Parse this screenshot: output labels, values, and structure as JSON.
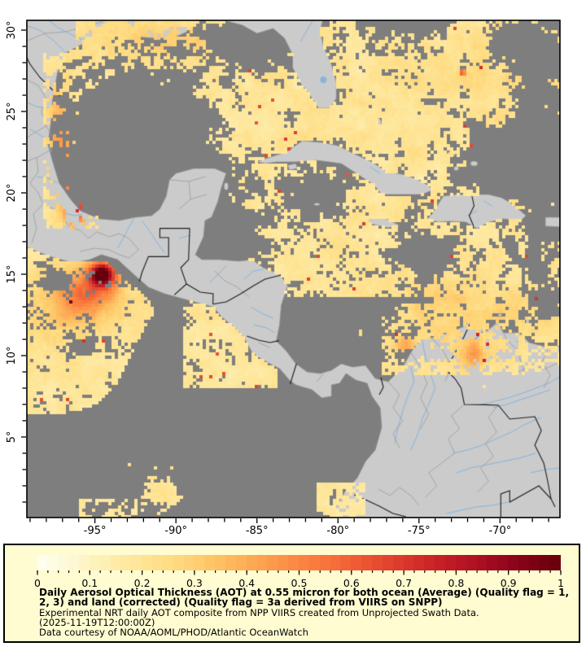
{
  "caption": {
    "line1": "Daily Aerosol Optical Thickness (AOT) at 0.55 micron for both ocean (Average) (Quality flag = 1,",
    "line2": "2, 3) and land (corrected) (Quality flag = 3a derived from VIIRS on SNPP)",
    "line3": "Experimental NRT daily AOT composite from NPP VIIRS created from Unprojected Swath Data.",
    "line4": "(2025-11-19T12:00:00Z)",
    "line5": "Data courtesy of NOAA/AOML/PHOD/Atlantic OceanWatch"
  },
  "axes": {
    "lon_tick_labels": [
      "-95°",
      "-90°",
      "-85°",
      "-80°",
      "-75°",
      "-70°"
    ],
    "lon_tick_values": [
      -95,
      -90,
      -85,
      -80,
      -75,
      -70
    ],
    "lat_tick_labels": [
      "30°",
      "25°",
      "20°",
      "15°",
      "10°",
      "5°"
    ],
    "lat_tick_values": [
      30,
      25,
      20,
      15,
      10,
      5
    ],
    "minor_tick_step_deg": 1
  },
  "colorbar": {
    "tick_labels": [
      "0",
      "0.1",
      "0.2",
      "0.3",
      "0.4",
      "0.5",
      "0.6",
      "0.7",
      "0.8",
      "0.9",
      "1"
    ],
    "tick_values": [
      0,
      0.1,
      0.2,
      0.3,
      0.4,
      0.5,
      0.6,
      0.7,
      0.8,
      0.9,
      1
    ],
    "minor_tick_step": 0.02,
    "range": [
      0,
      1
    ],
    "steps": 50
  },
  "colors": {
    "page_bg": "#ffffff",
    "panel_bg": "#fffcd1",
    "panel_border": "#000000",
    "land": "#cbcbcb",
    "coast_stroke": "#8f8f8f",
    "ocean_no_data": "#7e7e7e",
    "river": "#86b4dc",
    "border_admin": "#9b9b9b",
    "border_international": "#1b1b1b",
    "map_frame": "#000000",
    "colormap_stops": [
      [
        0.0,
        "#fefef2"
      ],
      [
        0.05,
        "#fdfadc"
      ],
      [
        0.1,
        "#fef4c0"
      ],
      [
        0.15,
        "#feeba8"
      ],
      [
        0.2,
        "#fee597"
      ],
      [
        0.25,
        "#fedd85"
      ],
      [
        0.3,
        "#fed173"
      ],
      [
        0.35,
        "#fdc063"
      ],
      [
        0.4,
        "#fdad56"
      ],
      [
        0.45,
        "#fc9a4c"
      ],
      [
        0.5,
        "#fb8742"
      ],
      [
        0.55,
        "#f7753c"
      ],
      [
        0.6,
        "#f06036"
      ],
      [
        0.65,
        "#e64c31"
      ],
      [
        0.7,
        "#da382c"
      ],
      [
        0.75,
        "#cc2627"
      ],
      [
        0.8,
        "#bc1826"
      ],
      [
        0.85,
        "#a90e23"
      ],
      [
        0.9,
        "#93051c"
      ],
      [
        0.95,
        "#7c0113"
      ],
      [
        1.0,
        "#65000c"
      ]
    ]
  },
  "chart_data": {
    "type": "heatmap",
    "title": "Daily Aerosol Optical Thickness (AOT) at 0.55 micron",
    "value_range": [
      0,
      1
    ],
    "extent": {
      "lon_min": -99.2,
      "lon_max": -66.3,
      "lat_min": 0.05,
      "lat_max": 30.6
    },
    "background_aot_typical": 0.15,
    "hotspots": [
      {
        "name": "gulf-of-tehuantepec-smoke-plume",
        "lon": -94.55,
        "lat": 15.0,
        "sx": 0.55,
        "sy": 0.5,
        "amp": 0.8
      },
      {
        "name": "tehuantepec-plume-southwest-extension",
        "lon": -95.4,
        "lat": 14.0,
        "sx": 1.4,
        "sy": 1.1,
        "amp": 0.28
      },
      {
        "name": "tehuantepec-broad-elevation",
        "lon": -96.6,
        "lat": 12.9,
        "sx": 2.0,
        "sy": 1.6,
        "amp": 0.12
      },
      {
        "name": "veracruz-coastal-plume",
        "lon": -96.15,
        "lat": 19.2,
        "sx": 0.45,
        "sy": 0.85,
        "amp": 0.5
      },
      {
        "name": "tamaulipas-coastal-band",
        "lon": -96.9,
        "lat": 21.8,
        "sx": 0.55,
        "sy": 2.2,
        "amp": 0.22
      },
      {
        "name": "north-mexico-coast-faint",
        "lon": -97.3,
        "lat": 24.6,
        "sx": 0.5,
        "sy": 1.6,
        "amp": 0.14
      },
      {
        "name": "north-gulf-coast-tinge",
        "lon": -90.5,
        "lat": 29.6,
        "sx": 3.5,
        "sy": 1.1,
        "amp": 0.09
      },
      {
        "name": "south-caribbean-warm-band",
        "lon": -72.5,
        "lat": 12.6,
        "sx": 3.5,
        "sy": 1.8,
        "amp": 0.1
      },
      {
        "name": "lake-maracaibo-patch",
        "lon": -71.6,
        "lat": 10.0,
        "sx": 0.45,
        "sy": 0.7,
        "amp": 0.22
      },
      {
        "name": "colombia-coast-spot",
        "lon": -75.9,
        "lat": 10.6,
        "sx": 0.5,
        "sy": 0.4,
        "amp": 0.2
      },
      {
        "name": "atlantic-tiny-red-speck",
        "lon": -72.3,
        "lat": 27.4,
        "sx": 0.12,
        "sy": 0.12,
        "amp": 0.55
      },
      {
        "name": "subtropical-atlantic-haze",
        "lon": -68.5,
        "lat": 27.5,
        "sx": 6.0,
        "sy": 4.0,
        "amp": 0.05
      }
    ],
    "no_data_blobs": [
      {
        "name": "central-gulf-of-mexico",
        "lon": -92.1,
        "lat": 24.1,
        "sx": 2.7,
        "sy": 2.3,
        "amp": 1.35
      },
      {
        "name": "bay-of-campeche",
        "lon": -94.6,
        "lat": 20.9,
        "sx": 1.9,
        "sy": 1.7,
        "amp": 1.0
      },
      {
        "name": "yucatan-channel-tail",
        "lon": -88.4,
        "lat": 21.2,
        "sx": 1.5,
        "sy": 1.2,
        "amp": 0.95
      },
      {
        "name": "south-gulf-point",
        "lon": -90.8,
        "lat": 19.9,
        "sx": 1.8,
        "sy": 1.3,
        "amp": 0.9
      },
      {
        "name": "gulf-of-honduras",
        "lon": -87.6,
        "lat": 16.9,
        "sx": 1.9,
        "sy": 1.6,
        "amp": 1.5
      },
      {
        "name": "northeast-gulf-florida-panhandle",
        "lon": -85.2,
        "lat": 29.5,
        "sx": 1.9,
        "sy": 1.3,
        "amp": 1.1
      },
      {
        "name": "north-atlantic-patch",
        "lon": -75.9,
        "lat": 30.3,
        "sx": 1.7,
        "sy": 0.9,
        "amp": 0.8
      },
      {
        "name": "northeast-atlantic-patch",
        "lon": -68.3,
        "lat": 29.0,
        "sx": 1.6,
        "sy": 1.1,
        "amp": 0.7
      },
      {
        "name": "north-of-hispaniola",
        "lon": -70.4,
        "lat": 21.9,
        "sx": 1.6,
        "sy": 1.4,
        "amp": 1.0
      },
      {
        "name": "south-of-cuba",
        "lon": -81.6,
        "lat": 20.1,
        "sx": 1.5,
        "sy": 1.1,
        "amp": 0.85
      },
      {
        "name": "central-caribbean-patch",
        "lon": -74.3,
        "lat": 16.3,
        "sx": 1.6,
        "sy": 1.2,
        "amp": 0.8
      },
      {
        "name": "east-edge-band",
        "lon": -67.3,
        "lat": 21.5,
        "sx": 1.4,
        "sy": 5.5,
        "amp": 0.75
      },
      {
        "name": "pacific-coastal-hole",
        "lon": -97.3,
        "lat": 14.9,
        "sx": 0.9,
        "sy": 0.7,
        "amp": 0.6
      },
      {
        "name": "pacific-hole-south",
        "lon": -95.7,
        "lat": 10.6,
        "sx": 0.8,
        "sy": 0.6,
        "amp": 0.5
      }
    ],
    "no_data_regions_named": [
      "central Gulf of Mexico",
      "Bay of Campeche",
      "Gulf of Honduras",
      "southwestern Caribbean",
      "eastern tropical Pacific south of ~8N",
      "Atlantic band along eastern map edge"
    ]
  }
}
